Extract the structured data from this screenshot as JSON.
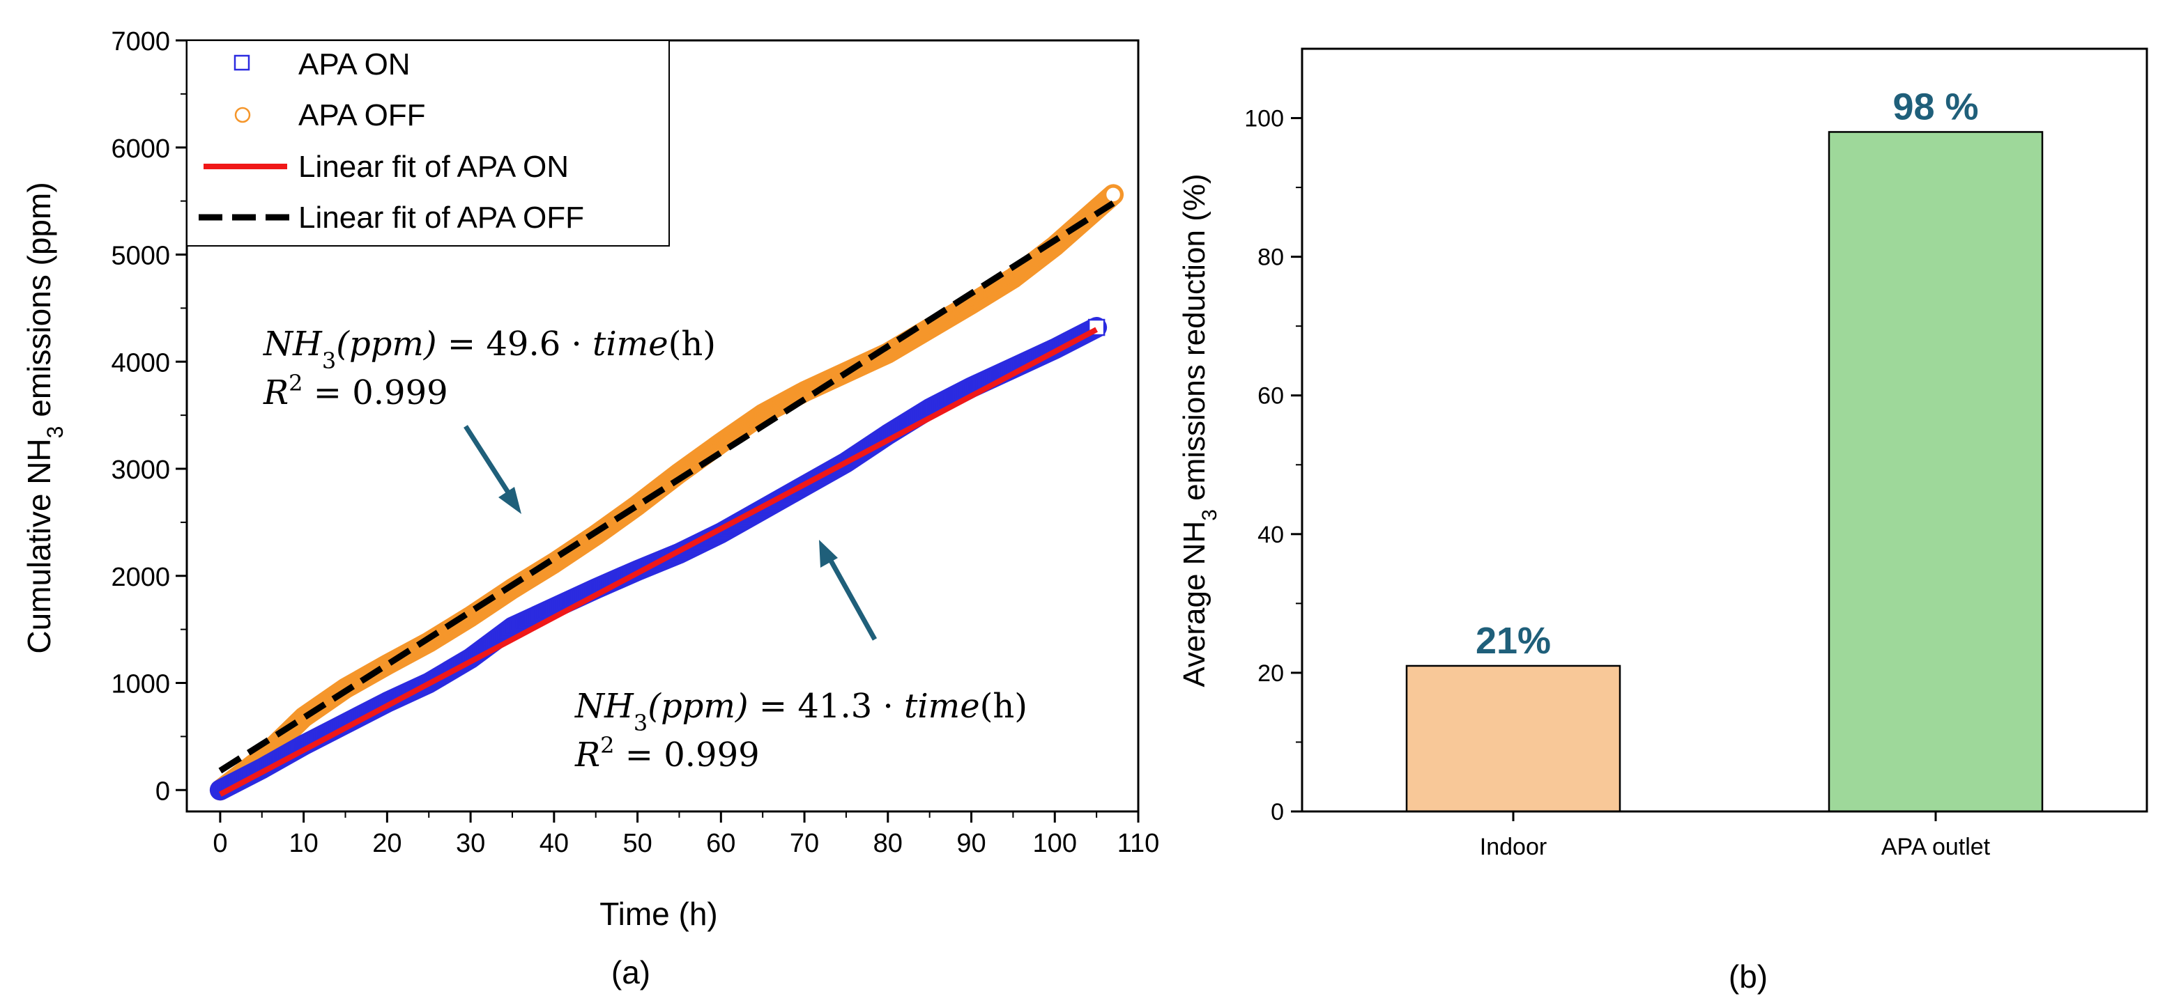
{
  "chart_data": [
    {
      "panel_label": "(a)",
      "type": "scatter",
      "xlabel": "Time (h)",
      "ylabel_prefix": "Cumulative NH",
      "ylabel_sub": "3",
      "ylabel_suffix": " emissions (ppm)",
      "xlim": [
        -4,
        110
      ],
      "ylim": [
        -200,
        7000
      ],
      "xticks": [
        0,
        10,
        20,
        30,
        40,
        50,
        60,
        70,
        80,
        90,
        100,
        110
      ],
      "yticks": [
        0,
        1000,
        2000,
        3000,
        4000,
        5000,
        6000,
        7000
      ],
      "legend_position": "top-left",
      "series": [
        {
          "name": "APA ON",
          "kind": "markers",
          "marker": "square",
          "color": "#2B2BE0",
          "x": [
            0,
            5,
            10,
            15,
            20,
            25,
            30,
            35,
            40,
            45,
            50,
            55,
            60,
            65,
            70,
            75,
            80,
            85,
            90,
            95,
            100,
            105
          ],
          "y": [
            0,
            200,
            420,
            620,
            820,
            1000,
            1230,
            1520,
            1700,
            1880,
            2050,
            2210,
            2400,
            2620,
            2840,
            3060,
            3320,
            3560,
            3760,
            3940,
            4120,
            4320
          ]
        },
        {
          "name": "APA OFF",
          "kind": "markers",
          "marker": "circle",
          "color": "#F5962B",
          "x": [
            0,
            5,
            10,
            15,
            20,
            25,
            30,
            35,
            40,
            45,
            50,
            55,
            60,
            65,
            70,
            75,
            80,
            85,
            90,
            95,
            100,
            107
          ],
          "y": [
            0,
            300,
            680,
            950,
            1170,
            1380,
            1620,
            1880,
            2120,
            2380,
            2660,
            2960,
            3240,
            3510,
            3720,
            3900,
            4080,
            4310,
            4540,
            4780,
            5080,
            5560
          ]
        },
        {
          "name": "Linear fit of APA ON",
          "kind": "line",
          "style": "solid",
          "color": "#F01818",
          "x": [
            0,
            105
          ],
          "y": [
            -40,
            4300
          ]
        },
        {
          "name": "Linear fit of APA OFF",
          "kind": "line",
          "style": "dashed",
          "color": "#000000",
          "x": [
            0,
            107
          ],
          "y": [
            180,
            5480
          ]
        }
      ],
      "annotations": [
        {
          "id": "off",
          "slope": "49.6",
          "r2": "0.999",
          "points_to": "APA OFF"
        },
        {
          "id": "on",
          "slope": "41.3",
          "r2": "0.999",
          "points_to": "APA ON"
        }
      ],
      "equation_parts": {
        "lhs_symbol": "NH",
        "lhs_sub": "3",
        "lhs_unit": "(ppm)",
        "equals": " = ",
        "dot": " · ",
        "time_word": "time",
        "time_unit": "(h)",
        "r2_symbol": "R",
        "r2_exp": "2"
      },
      "arrow_color": "#1F5F7A"
    },
    {
      "panel_label": "(b)",
      "type": "bar",
      "categories": [
        "Indoor",
        "APA outlet"
      ],
      "values": [
        21,
        98
      ],
      "data_labels": [
        "21%",
        "98 %"
      ],
      "colors": [
        "#F8C898",
        "#9ED89A"
      ],
      "label_color": "#1F5F7A",
      "ylabel_prefix": "Average NH",
      "ylabel_sub": "3",
      "ylabel_suffix": " emissions reduction (%)",
      "xlabel": "",
      "ylim": [
        0,
        110
      ],
      "yticks": [
        0,
        20,
        40,
        60,
        80,
        100
      ]
    }
  ]
}
